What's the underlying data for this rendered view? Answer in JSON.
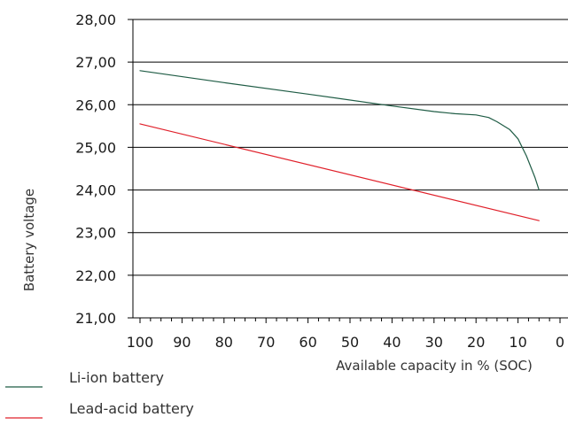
{
  "chart_data": {
    "type": "line",
    "title": "",
    "xlabel": "Available capacity in % (SOC)",
    "ylabel": "Battery voltage",
    "xlim": [
      100,
      0
    ],
    "ylim": [
      21,
      28
    ],
    "x_reversed": true,
    "grid": "horizontal",
    "legend": "bottom-left",
    "x_ticks": [
      "100",
      "90",
      "80",
      "70",
      "60",
      "50",
      "40",
      "30",
      "20",
      "10",
      "0"
    ],
    "y_ticks": [
      "21,00",
      "22,00",
      "23,00",
      "24,00",
      "25,00",
      "26,00",
      "27,00",
      "28,00"
    ],
    "series": [
      {
        "name": "Li-ion battery",
        "color": "#1f5c45",
        "x": [
          100,
          80,
          60,
          40,
          30,
          25,
          20,
          17,
          15,
          12,
          10,
          8,
          6,
          5
        ],
        "y": [
          26.8,
          26.52,
          26.25,
          25.97,
          25.84,
          25.79,
          25.76,
          25.7,
          25.6,
          25.42,
          25.2,
          24.8,
          24.3,
          24.0
        ]
      },
      {
        "name": "Lead-acid battery",
        "color": "#e0202a",
        "x": [
          100,
          5
        ],
        "y": [
          25.55,
          23.28
        ]
      }
    ]
  }
}
